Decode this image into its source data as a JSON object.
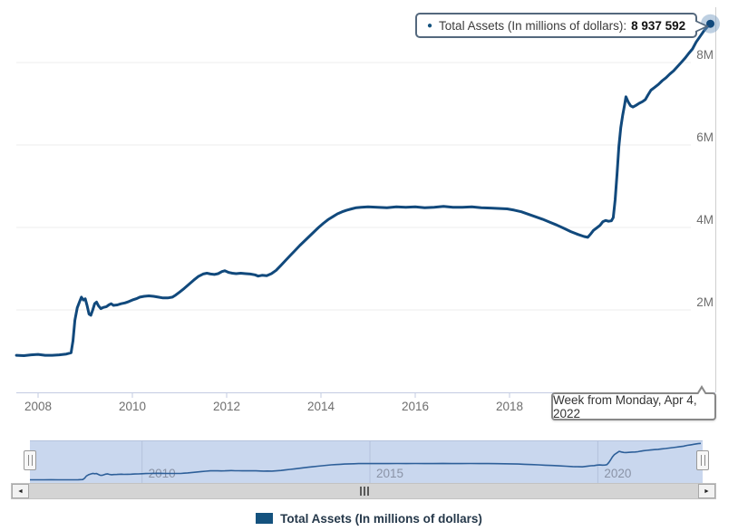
{
  "tooltip": {
    "series_label": "Total Assets (In millions of dollars):",
    "value": "8 937 592"
  },
  "date_label": {
    "text": "Week from Monday, Apr 4, 2022"
  },
  "legend": {
    "label": "Total Assets (In millions of dollars)"
  },
  "scrollbar": {
    "left_arrow": "◄",
    "right_arrow": "►"
  },
  "colors": {
    "line": "#11497c",
    "marker": "#11497c",
    "marker_halo": "rgba(110,150,190,0.45)",
    "grid": "#ececec",
    "axis": "#c3cbe2",
    "axis_label": "#6e6e6e",
    "plot_border": "#cfcfcf",
    "navigator_fill": "#c9d7ee",
    "navigator_grid": "#b4c2dc",
    "navigator_line": "#2d5f99",
    "navigator_label": "#8a93a6",
    "legend_swatch": "#14527e"
  },
  "chart_data": {
    "type": "line",
    "title": "",
    "xlabel": "",
    "ylabel": "Total Assets (In millions of dollars)",
    "xlim": [
      2007.54,
      2022.3
    ],
    "ylim": [
      0,
      9.3
    ],
    "grid": "horizontal",
    "legend_position": "bottom-center",
    "x_ticks": [
      2008,
      2010,
      2012,
      2014,
      2016,
      2018,
      2020
    ],
    "y_ticks": [
      {
        "value": 2,
        "label": "2M"
      },
      {
        "value": 4,
        "label": "4M"
      },
      {
        "value": 6,
        "label": "6M"
      },
      {
        "value": 8,
        "label": "8M"
      }
    ],
    "navigator_ticks": [
      2010,
      2015,
      2020
    ],
    "highlighted_point": {
      "date": "Week from Monday, Apr 4, 2022",
      "value_millions": 8937592
    },
    "series": [
      {
        "name": "Total Assets (In millions of dollars)",
        "unit": "axis label M = millions of millions of dollars",
        "points": [
          [
            2007.54,
            0.9
          ],
          [
            2007.7,
            0.89
          ],
          [
            2007.85,
            0.91
          ],
          [
            2008.0,
            0.92
          ],
          [
            2008.15,
            0.9
          ],
          [
            2008.3,
            0.9
          ],
          [
            2008.45,
            0.91
          ],
          [
            2008.6,
            0.93
          ],
          [
            2008.7,
            0.96
          ],
          [
            2008.74,
            1.25
          ],
          [
            2008.78,
            1.75
          ],
          [
            2008.83,
            2.05
          ],
          [
            2008.88,
            2.2
          ],
          [
            2008.92,
            2.31
          ],
          [
            2008.96,
            2.24
          ],
          [
            2009.0,
            2.27
          ],
          [
            2009.04,
            2.1
          ],
          [
            2009.08,
            1.9
          ],
          [
            2009.12,
            1.87
          ],
          [
            2009.16,
            2.0
          ],
          [
            2009.2,
            2.15
          ],
          [
            2009.24,
            2.19
          ],
          [
            2009.28,
            2.1
          ],
          [
            2009.33,
            2.03
          ],
          [
            2009.38,
            2.06
          ],
          [
            2009.45,
            2.08
          ],
          [
            2009.5,
            2.12
          ],
          [
            2009.55,
            2.15
          ],
          [
            2009.6,
            2.11
          ],
          [
            2009.68,
            2.12
          ],
          [
            2009.76,
            2.15
          ],
          [
            2009.84,
            2.17
          ],
          [
            2009.92,
            2.2
          ],
          [
            2010.0,
            2.24
          ],
          [
            2010.08,
            2.27
          ],
          [
            2010.16,
            2.31
          ],
          [
            2010.25,
            2.33
          ],
          [
            2010.35,
            2.34
          ],
          [
            2010.45,
            2.33
          ],
          [
            2010.55,
            2.31
          ],
          [
            2010.65,
            2.29
          ],
          [
            2010.75,
            2.29
          ],
          [
            2010.85,
            2.31
          ],
          [
            2010.92,
            2.36
          ],
          [
            2011.0,
            2.43
          ],
          [
            2011.1,
            2.52
          ],
          [
            2011.2,
            2.62
          ],
          [
            2011.3,
            2.72
          ],
          [
            2011.4,
            2.81
          ],
          [
            2011.5,
            2.87
          ],
          [
            2011.58,
            2.89
          ],
          [
            2011.66,
            2.87
          ],
          [
            2011.74,
            2.86
          ],
          [
            2011.82,
            2.88
          ],
          [
            2011.9,
            2.93
          ],
          [
            2011.96,
            2.95
          ],
          [
            2012.04,
            2.91
          ],
          [
            2012.12,
            2.89
          ],
          [
            2012.2,
            2.88
          ],
          [
            2012.3,
            2.89
          ],
          [
            2012.4,
            2.88
          ],
          [
            2012.5,
            2.87
          ],
          [
            2012.6,
            2.85
          ],
          [
            2012.67,
            2.82
          ],
          [
            2012.75,
            2.84
          ],
          [
            2012.85,
            2.83
          ],
          [
            2012.95,
            2.88
          ],
          [
            2013.05,
            2.96
          ],
          [
            2013.15,
            3.08
          ],
          [
            2013.25,
            3.2
          ],
          [
            2013.35,
            3.32
          ],
          [
            2013.45,
            3.44
          ],
          [
            2013.55,
            3.56
          ],
          [
            2013.65,
            3.67
          ],
          [
            2013.75,
            3.78
          ],
          [
            2013.85,
            3.89
          ],
          [
            2013.95,
            4.0
          ],
          [
            2014.05,
            4.1
          ],
          [
            2014.15,
            4.19
          ],
          [
            2014.25,
            4.26
          ],
          [
            2014.35,
            4.33
          ],
          [
            2014.45,
            4.38
          ],
          [
            2014.55,
            4.42
          ],
          [
            2014.65,
            4.45
          ],
          [
            2014.75,
            4.48
          ],
          [
            2014.85,
            4.49
          ],
          [
            2015.0,
            4.5
          ],
          [
            2015.2,
            4.49
          ],
          [
            2015.4,
            4.48
          ],
          [
            2015.6,
            4.5
          ],
          [
            2015.8,
            4.49
          ],
          [
            2016.0,
            4.5
          ],
          [
            2016.2,
            4.48
          ],
          [
            2016.4,
            4.49
          ],
          [
            2016.6,
            4.51
          ],
          [
            2016.8,
            4.49
          ],
          [
            2017.0,
            4.49
          ],
          [
            2017.2,
            4.5
          ],
          [
            2017.4,
            4.48
          ],
          [
            2017.6,
            4.47
          ],
          [
            2017.8,
            4.46
          ],
          [
            2017.95,
            4.45
          ],
          [
            2018.1,
            4.42
          ],
          [
            2018.25,
            4.38
          ],
          [
            2018.4,
            4.32
          ],
          [
            2018.55,
            4.26
          ],
          [
            2018.7,
            4.2
          ],
          [
            2018.85,
            4.13
          ],
          [
            2019.0,
            4.06
          ],
          [
            2019.15,
            3.98
          ],
          [
            2019.3,
            3.9
          ],
          [
            2019.45,
            3.83
          ],
          [
            2019.58,
            3.78
          ],
          [
            2019.66,
            3.76
          ],
          [
            2019.72,
            3.84
          ],
          [
            2019.78,
            3.93
          ],
          [
            2019.85,
            3.99
          ],
          [
            2019.92,
            4.05
          ],
          [
            2019.98,
            4.14
          ],
          [
            2020.04,
            4.17
          ],
          [
            2020.1,
            4.15
          ],
          [
            2020.16,
            4.16
          ],
          [
            2020.2,
            4.24
          ],
          [
            2020.24,
            4.67
          ],
          [
            2020.28,
            5.3
          ],
          [
            2020.32,
            5.96
          ],
          [
            2020.36,
            6.42
          ],
          [
            2020.4,
            6.72
          ],
          [
            2020.44,
            6.97
          ],
          [
            2020.47,
            7.17
          ],
          [
            2020.52,
            7.04
          ],
          [
            2020.57,
            6.95
          ],
          [
            2020.62,
            6.92
          ],
          [
            2020.68,
            6.96
          ],
          [
            2020.75,
            7.01
          ],
          [
            2020.82,
            7.05
          ],
          [
            2020.88,
            7.1
          ],
          [
            2020.94,
            7.22
          ],
          [
            2021.0,
            7.33
          ],
          [
            2021.08,
            7.4
          ],
          [
            2021.16,
            7.47
          ],
          [
            2021.24,
            7.56
          ],
          [
            2021.32,
            7.63
          ],
          [
            2021.4,
            7.72
          ],
          [
            2021.48,
            7.8
          ],
          [
            2021.56,
            7.9
          ],
          [
            2021.64,
            8.0
          ],
          [
            2021.72,
            8.1
          ],
          [
            2021.8,
            8.22
          ],
          [
            2021.88,
            8.33
          ],
          [
            2021.96,
            8.5
          ],
          [
            2022.04,
            8.63
          ],
          [
            2022.12,
            8.76
          ],
          [
            2022.2,
            8.87
          ],
          [
            2022.26,
            8.94
          ]
        ]
      }
    ]
  }
}
